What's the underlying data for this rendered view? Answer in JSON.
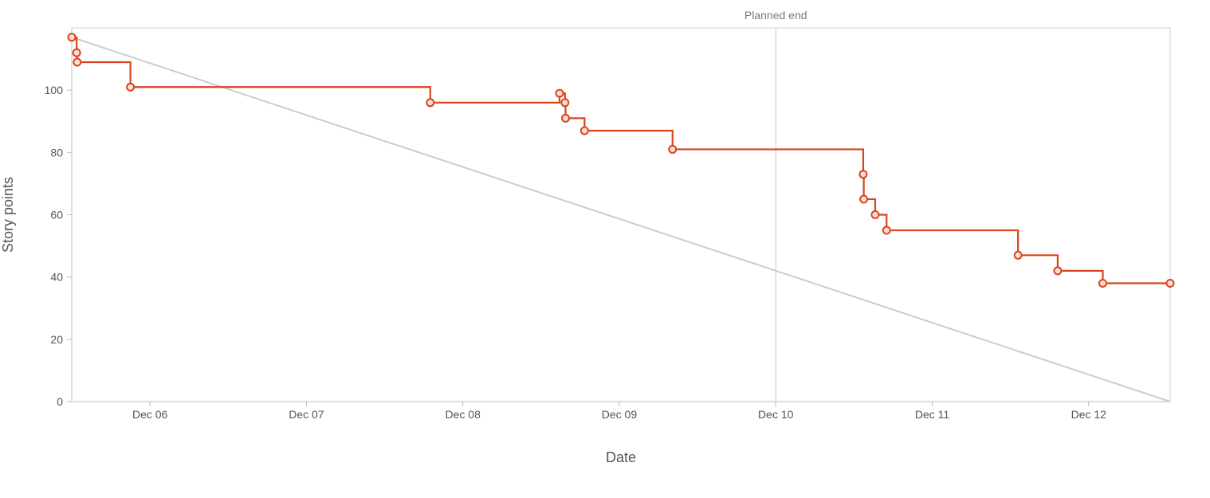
{
  "chart_data": {
    "type": "line",
    "title": "",
    "xlabel": "Date",
    "ylabel": "Story points",
    "xlim": [
      "2023-12-05T12:00",
      "2023-12-12T12:30"
    ],
    "ylim": [
      0,
      120
    ],
    "y_ticks": [
      0,
      20,
      40,
      60,
      80,
      100
    ],
    "x_ticks": [
      {
        "date": "2023-12-06T00:00",
        "label": "Dec 06"
      },
      {
        "date": "2023-12-07T00:00",
        "label": "Dec 07"
      },
      {
        "date": "2023-12-08T00:00",
        "label": "Dec 08"
      },
      {
        "date": "2023-12-09T00:00",
        "label": "Dec 09"
      },
      {
        "date": "2023-12-10T00:00",
        "label": "Dec 10"
      },
      {
        "date": "2023-12-11T00:00",
        "label": "Dec 11"
      },
      {
        "date": "2023-12-12T00:00",
        "label": "Dec 12"
      }
    ],
    "grid": false,
    "marker": {
      "label": "Planned end",
      "date": "2023-12-10T00:00"
    },
    "guideline": {
      "color": "#cccccc",
      "points": [
        {
          "x": "2023-12-05T12:00",
          "y": 117
        },
        {
          "x": "2023-12-12T12:30",
          "y": 0
        }
      ]
    },
    "series": [
      {
        "color": "#d9441c",
        "step": "after",
        "points": [
          {
            "x": "2023-12-05T12:00",
            "y": 117
          },
          {
            "x": "2023-12-05T12:45",
            "y": 112
          },
          {
            "x": "2023-12-05T12:50",
            "y": 109
          },
          {
            "x": "2023-12-05T21:00",
            "y": 101
          },
          {
            "x": "2023-12-07T19:00",
            "y": 96
          },
          {
            "x": "2023-12-08T14:50",
            "y": 99
          },
          {
            "x": "2023-12-08T15:40",
            "y": 96
          },
          {
            "x": "2023-12-08T15:45",
            "y": 91
          },
          {
            "x": "2023-12-08T18:40",
            "y": 87
          },
          {
            "x": "2023-12-09T08:10",
            "y": 81
          },
          {
            "x": "2023-12-10T13:25",
            "y": 73
          },
          {
            "x": "2023-12-10T13:30",
            "y": 65
          },
          {
            "x": "2023-12-10T15:15",
            "y": 60
          },
          {
            "x": "2023-12-10T17:00",
            "y": 55
          },
          {
            "x": "2023-12-11T13:10",
            "y": 47
          },
          {
            "x": "2023-12-11T19:15",
            "y": 42
          },
          {
            "x": "2023-12-12T02:10",
            "y": 38
          },
          {
            "x": "2023-12-12T12:30",
            "y": 38
          }
        ]
      }
    ]
  }
}
